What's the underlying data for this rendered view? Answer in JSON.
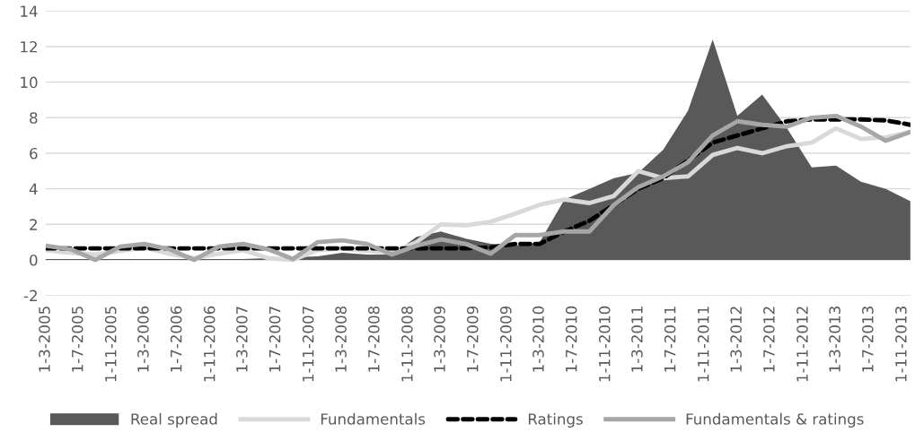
{
  "chart_data": {
    "type": "line",
    "x": [
      "2005-03-01",
      "2005-06-01",
      "2005-09-01",
      "2005-12-01",
      "2006-03-01",
      "2006-06-01",
      "2006-09-01",
      "2006-12-01",
      "2007-03-01",
      "2007-06-01",
      "2007-09-01",
      "2007-12-01",
      "2008-03-01",
      "2008-06-01",
      "2008-09-01",
      "2008-12-01",
      "2009-03-01",
      "2009-06-01",
      "2009-09-01",
      "2009-12-01",
      "2010-03-01",
      "2010-06-01",
      "2010-09-01",
      "2010-12-01",
      "2011-03-01",
      "2011-06-01",
      "2011-09-01",
      "2011-12-01",
      "2012-03-01",
      "2012-06-01",
      "2012-09-01",
      "2012-12-01",
      "2013-03-01",
      "2013-06-01",
      "2013-09-01",
      "2013-12-01"
    ],
    "series": [
      {
        "name": "Real spread",
        "type": "area",
        "color": "#595959",
        "values": [
          0.05,
          0.05,
          0.05,
          0.05,
          0.05,
          0.05,
          0.05,
          0.05,
          0.05,
          0.1,
          0.15,
          0.2,
          0.4,
          0.3,
          0.3,
          1.3,
          1.6,
          1.2,
          0.9,
          0.8,
          1.0,
          3.4,
          4.0,
          4.6,
          4.9,
          6.2,
          8.4,
          12.4,
          8.1,
          9.3,
          7.4,
          5.2,
          5.3,
          4.4,
          4.0,
          3.3
        ]
      },
      {
        "name": "Fundamentals",
        "color": "#d9d9d9",
        "line_style": "solid",
        "values": [
          0.55,
          0.4,
          0.3,
          0.5,
          0.7,
          0.35,
          0.1,
          0.35,
          0.55,
          0.1,
          0.0,
          0.55,
          0.65,
          0.5,
          0.4,
          1.0,
          2.0,
          1.95,
          2.15,
          2.6,
          3.1,
          3.4,
          3.2,
          3.6,
          5.0,
          4.6,
          4.7,
          5.9,
          6.3,
          6.0,
          6.4,
          6.6,
          7.4,
          6.8,
          6.9,
          7.2
        ]
      },
      {
        "name": "Ratings",
        "color": "#000000",
        "line_style": "dashed",
        "values": [
          0.65,
          0.65,
          0.65,
          0.65,
          0.65,
          0.65,
          0.65,
          0.65,
          0.65,
          0.65,
          0.65,
          0.65,
          0.65,
          0.65,
          0.65,
          0.65,
          0.65,
          0.65,
          0.7,
          0.9,
          0.9,
          1.6,
          2.2,
          3.1,
          4.0,
          4.6,
          5.6,
          6.6,
          7.0,
          7.4,
          7.8,
          7.9,
          7.9,
          7.9,
          7.85,
          7.6
        ]
      },
      {
        "name": "Fundamentals & ratings",
        "color": "#a6a6a6",
        "line_style": "solid",
        "values": [
          0.8,
          0.6,
          0.0,
          0.75,
          0.9,
          0.6,
          0.0,
          0.75,
          0.9,
          0.6,
          0.05,
          1.0,
          1.1,
          0.9,
          0.3,
          0.8,
          1.15,
          0.9,
          0.35,
          1.4,
          1.4,
          1.6,
          1.6,
          3.1,
          4.1,
          4.7,
          5.5,
          7.0,
          7.8,
          7.6,
          7.5,
          8.0,
          8.1,
          7.5,
          6.7,
          7.2
        ]
      }
    ],
    "xlim": [
      "2005-03-01",
      "2013-12-01"
    ],
    "xticks": [
      {
        "value": "2005-03-01",
        "label": "1-3-2005"
      },
      {
        "value": "2005-07-01",
        "label": "1-7-2005"
      },
      {
        "value": "2005-11-01",
        "label": "1-11-2005"
      },
      {
        "value": "2006-03-01",
        "label": "1-3-2006"
      },
      {
        "value": "2006-07-01",
        "label": "1-7-2006"
      },
      {
        "value": "2006-11-01",
        "label": "1-11-2006"
      },
      {
        "value": "2007-03-01",
        "label": "1-3-2007"
      },
      {
        "value": "2007-07-01",
        "label": "1-7-2007"
      },
      {
        "value": "2007-11-01",
        "label": "1-11-2007"
      },
      {
        "value": "2008-03-01",
        "label": "1-3-2008"
      },
      {
        "value": "2008-07-01",
        "label": "1-7-2008"
      },
      {
        "value": "2008-11-01",
        "label": "1-11-2008"
      },
      {
        "value": "2009-03-01",
        "label": "1-3-2009"
      },
      {
        "value": "2009-07-01",
        "label": "1-7-2009"
      },
      {
        "value": "2009-11-01",
        "label": "1-11-2009"
      },
      {
        "value": "2010-03-01",
        "label": "1-3-2010"
      },
      {
        "value": "2010-07-01",
        "label": "1-7-2010"
      },
      {
        "value": "2010-11-01",
        "label": "1-11-2010"
      },
      {
        "value": "2011-03-01",
        "label": "1-3-2011"
      },
      {
        "value": "2011-07-01",
        "label": "1-7-2011"
      },
      {
        "value": "2011-11-01",
        "label": "1-11-2011"
      },
      {
        "value": "2012-03-01",
        "label": "1-3-2012"
      },
      {
        "value": "2012-07-01",
        "label": "1-7-2012"
      },
      {
        "value": "2012-11-01",
        "label": "1-11-2012"
      },
      {
        "value": "2013-03-01",
        "label": "1-3-2013"
      },
      {
        "value": "2013-07-01",
        "label": "1-7-2013"
      },
      {
        "value": "2013-11-01",
        "label": "1-11-2013"
      }
    ],
    "ylim": [
      -2,
      14
    ],
    "yticks": [
      -2,
      0,
      2,
      4,
      6,
      8,
      10,
      12,
      14
    ],
    "grid": "y",
    "legend": "bottom"
  }
}
